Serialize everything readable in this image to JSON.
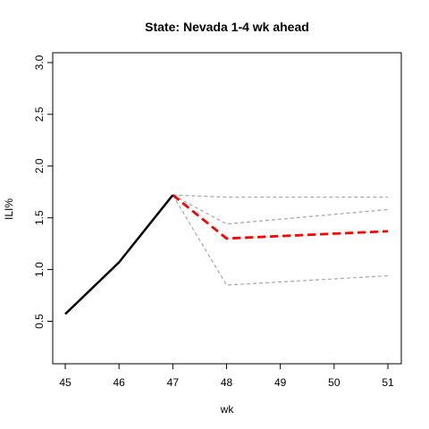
{
  "chart_data": {
    "type": "line",
    "title": "State: Nevada 1-4 wk ahead",
    "xlabel": "wk",
    "ylabel": "ILI%",
    "xlim": [
      45,
      51
    ],
    "ylim": [
      0.1,
      3.1
    ],
    "x_ticks": [
      45,
      46,
      47,
      48,
      49,
      50,
      51
    ],
    "x_tick_labels": [
      "45",
      "46",
      "47",
      "48",
      "49",
      "50",
      "51"
    ],
    "y_ticks": [
      0.5,
      1.0,
      1.5,
      2.0,
      2.5,
      3.0
    ],
    "y_tick_labels": [
      "0.5",
      "1.0",
      "1.5",
      "2.0",
      "2.5",
      "3.0"
    ],
    "grid": false,
    "series": [
      {
        "style": "observed",
        "color": "#000000",
        "dash": "solid",
        "x": [
          45,
          46,
          47
        ],
        "y": [
          0.57,
          1.07,
          1.72
        ]
      },
      {
        "style": "interval",
        "color": "#a6a6a6",
        "dash": "dashed",
        "x": [
          47,
          48,
          51
        ],
        "y": [
          1.72,
          1.7,
          1.7
        ]
      },
      {
        "style": "interval",
        "color": "#a6a6a6",
        "dash": "dashed",
        "x": [
          47,
          48,
          51
        ],
        "y": [
          1.72,
          1.44,
          1.58
        ]
      },
      {
        "style": "point-forecast",
        "color": "#ff0000",
        "dash": "dashed",
        "x": [
          47,
          48,
          51
        ],
        "y": [
          1.72,
          1.3,
          1.37
        ]
      },
      {
        "style": "interval",
        "color": "#a6a6a6",
        "dash": "dashed",
        "x": [
          47,
          48,
          51
        ],
        "y": [
          1.72,
          0.85,
          0.94
        ]
      }
    ]
  }
}
